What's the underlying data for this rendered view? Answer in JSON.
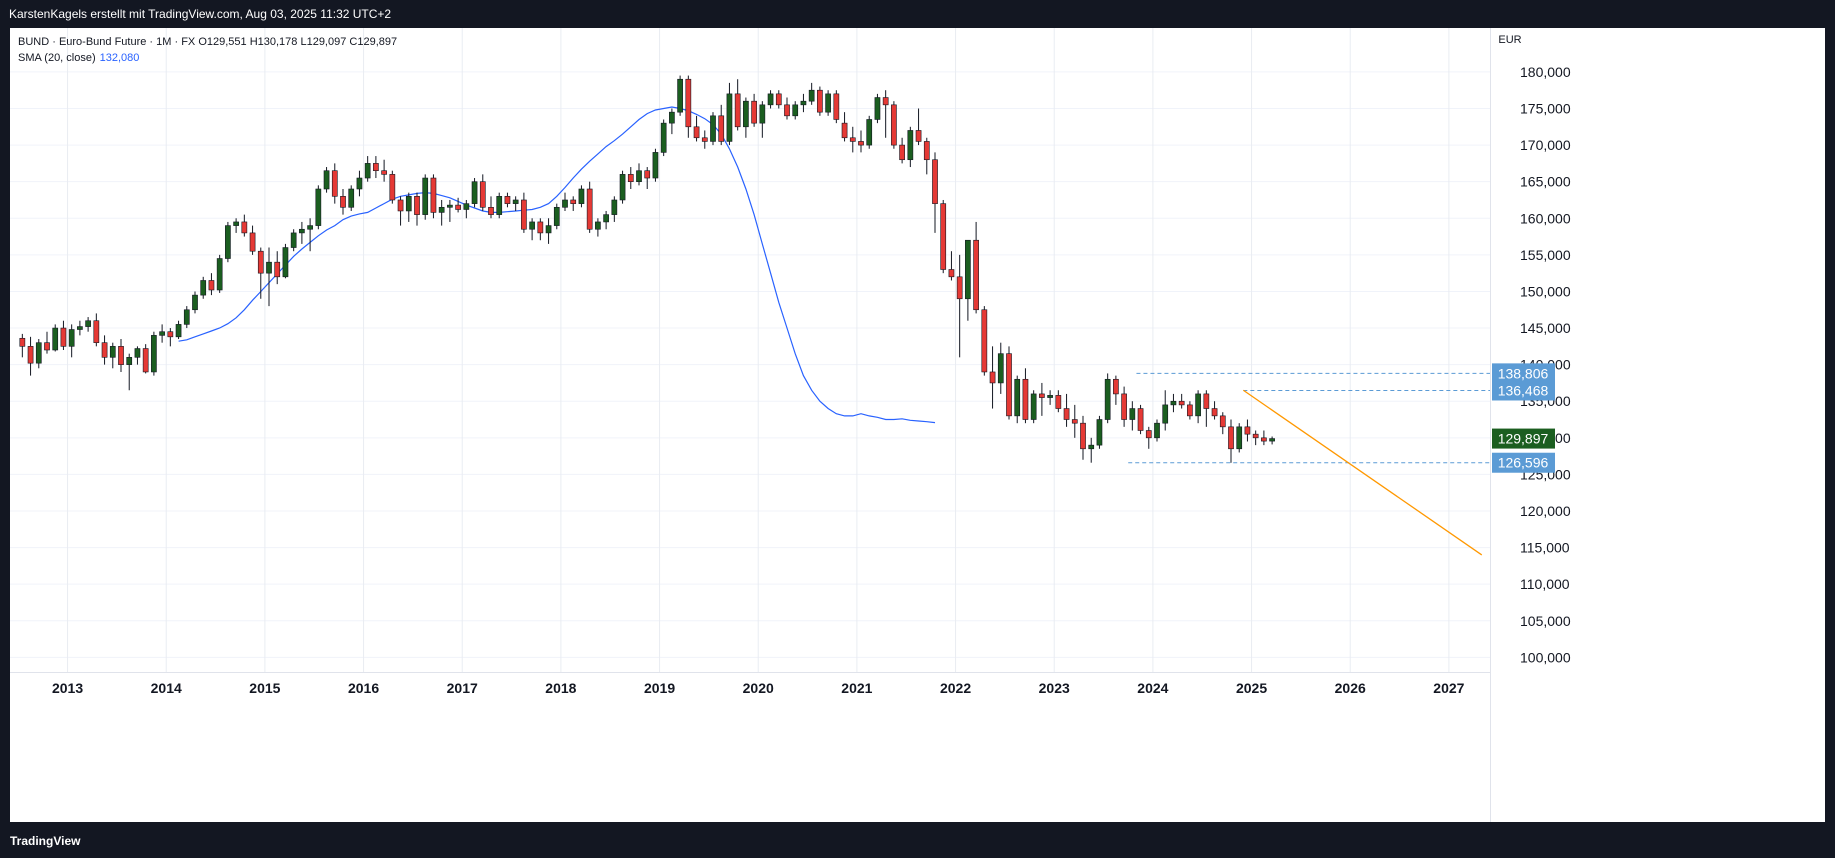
{
  "header": {
    "attribution": "KarstenKagels erstellt mit TradingView.com, Aug 03, 2025 11:32 UTC+2"
  },
  "footer": {
    "brand": "TradingView"
  },
  "legend": {
    "symbol_line": "BUND · Euro-Bund Future · 1M · FX  O129,551  H130,178  L129,097  C129,897",
    "sma_label": "SMA (20, close)",
    "sma_value": "132,080"
  },
  "colors": {
    "up": "#1b5e20",
    "down": "#e53935",
    "sma": "#2962ff",
    "trendline": "#ff9800",
    "level": "#5b9bd5",
    "price_label": "#1b5e20",
    "level_label": "#5b9bd5"
  },
  "chart_data": {
    "type": "candlestick",
    "currency": "EUR",
    "ylim": [
      98000,
      186000
    ],
    "y_ticks": [
      100000,
      105000,
      110000,
      115000,
      120000,
      125000,
      130000,
      135000,
      140000,
      145000,
      150000,
      155000,
      160000,
      165000,
      170000,
      175000,
      180000
    ],
    "y_tick_labels": [
      "100,000",
      "105,000",
      "110,000",
      "115,000",
      "120,000",
      "125,000",
      "130,000",
      "135,000",
      "140,000",
      "145,000",
      "150,000",
      "155,000",
      "160,000",
      "165,000",
      "170,000",
      "175,000",
      "180,000"
    ],
    "x_range": [
      "2012-06",
      "2027-06"
    ],
    "x_ticks": [
      "2013",
      "2014",
      "2015",
      "2016",
      "2017",
      "2018",
      "2019",
      "2020",
      "2021",
      "2022",
      "2023",
      "2024",
      "2025",
      "2026",
      "2027"
    ],
    "candles_start": "2012-07",
    "candles": [
      [
        143.6,
        144.2,
        141.0,
        142.5
      ],
      [
        142.5,
        143.8,
        138.5,
        140.2
      ],
      [
        140.2,
        143.5,
        139.5,
        143.0
      ],
      [
        143.0,
        144.5,
        141.5,
        142.0
      ],
      [
        142.0,
        145.5,
        141.8,
        145.0
      ],
      [
        145.0,
        146.0,
        142.0,
        142.5
      ],
      [
        142.5,
        145.5,
        141.0,
        144.8
      ],
      [
        144.8,
        146.0,
        144.0,
        145.2
      ],
      [
        145.2,
        146.5,
        144.5,
        146.0
      ],
      [
        146.0,
        147.0,
        142.5,
        143.0
      ],
      [
        143.0,
        144.0,
        140.0,
        141.0
      ],
      [
        141.0,
        143.0,
        139.5,
        142.5
      ],
      [
        142.5,
        143.5,
        139.0,
        140.0
      ],
      [
        140.0,
        141.5,
        136.5,
        141.0
      ],
      [
        141.0,
        142.5,
        140.0,
        142.2
      ],
      [
        142.2,
        142.8,
        138.8,
        139.0
      ],
      [
        139.0,
        144.5,
        138.5,
        144.0
      ],
      [
        144.0,
        145.5,
        143.0,
        144.5
      ],
      [
        144.5,
        145.0,
        142.5,
        143.8
      ],
      [
        143.8,
        146.0,
        143.5,
        145.5
      ],
      [
        145.5,
        148.0,
        145.0,
        147.5
      ],
      [
        147.5,
        150.0,
        147.0,
        149.5
      ],
      [
        149.5,
        152.0,
        149.0,
        151.5
      ],
      [
        151.5,
        152.5,
        149.5,
        150.2
      ],
      [
        150.2,
        155.0,
        149.8,
        154.5
      ],
      [
        154.5,
        159.5,
        154.0,
        159.0
      ],
      [
        159.0,
        160.0,
        158.0,
        159.5
      ],
      [
        159.5,
        160.5,
        157.5,
        158.0
      ],
      [
        158.0,
        159.0,
        155.0,
        155.5
      ],
      [
        155.5,
        156.0,
        149.0,
        152.5
      ],
      [
        152.5,
        156.0,
        148.0,
        154.0
      ],
      [
        154.0,
        155.5,
        151.0,
        152.0
      ],
      [
        152.0,
        156.5,
        151.8,
        156.0
      ],
      [
        156.0,
        158.5,
        155.5,
        158.0
      ],
      [
        158.0,
        159.5,
        156.5,
        158.5
      ],
      [
        158.5,
        160.0,
        155.5,
        159.0
      ],
      [
        159.0,
        164.5,
        158.5,
        164.0
      ],
      [
        164.0,
        167.0,
        163.5,
        166.5
      ],
      [
        166.5,
        167.5,
        162.0,
        163.0
      ],
      [
        163.0,
        164.0,
        160.5,
        161.5
      ],
      [
        161.5,
        164.5,
        161.0,
        164.0
      ],
      [
        164.0,
        166.5,
        163.0,
        165.5
      ],
      [
        165.5,
        168.5,
        165.0,
        167.5
      ],
      [
        167.5,
        168.5,
        165.5,
        166.5
      ],
      [
        166.5,
        168.0,
        165.0,
        166.0
      ],
      [
        166.0,
        166.5,
        162.0,
        162.5
      ],
      [
        162.5,
        163.0,
        159.0,
        161.0
      ],
      [
        161.0,
        163.5,
        159.5,
        163.0
      ],
      [
        163.0,
        163.5,
        159.0,
        160.5
      ],
      [
        160.5,
        166.0,
        159.8,
        165.5
      ],
      [
        165.5,
        166.0,
        160.0,
        160.8
      ],
      [
        160.8,
        162.5,
        159.0,
        161.5
      ],
      [
        161.5,
        162.5,
        159.5,
        161.8
      ],
      [
        161.8,
        162.8,
        160.8,
        161.2
      ],
      [
        161.2,
        162.5,
        160.0,
        162.0
      ],
      [
        162.0,
        165.5,
        161.5,
        165.0
      ],
      [
        165.0,
        166.0,
        161.0,
        161.5
      ],
      [
        161.5,
        163.0,
        160.0,
        160.5
      ],
      [
        160.5,
        163.5,
        160.0,
        163.0
      ],
      [
        163.0,
        163.5,
        161.5,
        162.0
      ],
      [
        162.0,
        163.0,
        161.0,
        162.5
      ],
      [
        162.5,
        163.5,
        158.0,
        158.5
      ],
      [
        158.5,
        160.0,
        157.0,
        159.5
      ],
      [
        159.5,
        160.0,
        157.0,
        158.0
      ],
      [
        158.0,
        160.0,
        156.5,
        159.0
      ],
      [
        159.0,
        162.0,
        158.5,
        161.5
      ],
      [
        161.5,
        163.5,
        161.0,
        162.5
      ],
      [
        162.5,
        163.0,
        161.0,
        162.0
      ],
      [
        162.0,
        164.5,
        161.5,
        164.0
      ],
      [
        164.0,
        165.0,
        158.0,
        158.5
      ],
      [
        158.5,
        160.0,
        157.5,
        159.5
      ],
      [
        159.5,
        161.0,
        158.5,
        160.5
      ],
      [
        160.5,
        163.0,
        159.5,
        162.5
      ],
      [
        162.5,
        166.5,
        162.0,
        166.0
      ],
      [
        166.0,
        167.0,
        164.0,
        165.0
      ],
      [
        165.0,
        167.5,
        164.5,
        166.5
      ],
      [
        166.5,
        167.0,
        164.0,
        165.5
      ],
      [
        165.5,
        169.5,
        165.0,
        169.0
      ],
      [
        169.0,
        173.5,
        168.5,
        173.0
      ],
      [
        173.0,
        175.0,
        171.5,
        174.5
      ],
      [
        174.5,
        179.5,
        174.0,
        179.0
      ],
      [
        179.0,
        179.5,
        171.0,
        172.5
      ],
      [
        172.5,
        174.0,
        170.5,
        171.0
      ],
      [
        171.0,
        172.0,
        169.5,
        170.5
      ],
      [
        170.5,
        174.5,
        170.0,
        174.0
      ],
      [
        174.0,
        175.5,
        170.0,
        170.5
      ],
      [
        170.5,
        178.5,
        170.0,
        177.0
      ],
      [
        177.0,
        179.0,
        172.0,
        172.5
      ],
      [
        172.5,
        176.5,
        171.0,
        176.0
      ],
      [
        176.0,
        177.0,
        172.5,
        173.0
      ],
      [
        173.0,
        176.0,
        171.0,
        175.5
      ],
      [
        175.5,
        177.5,
        175.0,
        177.0
      ],
      [
        177.0,
        177.5,
        175.0,
        175.5
      ],
      [
        175.5,
        176.5,
        173.5,
        174.0
      ],
      [
        174.0,
        176.0,
        173.5,
        175.5
      ],
      [
        175.5,
        177.0,
        174.5,
        176.0
      ],
      [
        176.0,
        178.5,
        175.5,
        177.5
      ],
      [
        177.5,
        178.0,
        174.0,
        174.5
      ],
      [
        174.5,
        177.5,
        174.0,
        177.0
      ],
      [
        177.0,
        177.5,
        173.0,
        173.5
      ],
      [
        173.0,
        174.5,
        170.5,
        171.0
      ],
      [
        171.0,
        172.5,
        169.0,
        170.5
      ],
      [
        170.5,
        172.0,
        169.0,
        170.0
      ],
      [
        170.0,
        174.0,
        169.5,
        173.5
      ],
      [
        173.5,
        177.0,
        173.0,
        176.5
      ],
      [
        176.5,
        177.5,
        171.0,
        175.5
      ],
      [
        175.5,
        176.0,
        169.5,
        170.0
      ],
      [
        170.0,
        171.0,
        167.5,
        168.0
      ],
      [
        168.0,
        172.5,
        167.0,
        172.0
      ],
      [
        172.0,
        175.0,
        170.0,
        170.5
      ],
      [
        170.5,
        171.0,
        166.0,
        168.0
      ],
      [
        168.0,
        169.0,
        158.0,
        162.0
      ],
      [
        162.0,
        162.5,
        152.5,
        153.0
      ],
      [
        153.0,
        155.5,
        151.5,
        152.0
      ],
      [
        152.0,
        155.0,
        141.0,
        149.0
      ],
      [
        149.0,
        157.0,
        146.0,
        157.0
      ],
      [
        157.0,
        159.5,
        147.0,
        147.5
      ],
      [
        147.5,
        148.0,
        138.5,
        139.0
      ],
      [
        139.0,
        142.5,
        134.0,
        137.5
      ],
      [
        137.5,
        143.0,
        136.0,
        141.5
      ],
      [
        141.5,
        142.5,
        132.5,
        133.0
      ],
      [
        133.0,
        138.5,
        132.0,
        138.0
      ],
      [
        138.0,
        139.5,
        132.0,
        132.5
      ],
      [
        132.5,
        136.5,
        132.0,
        136.0
      ],
      [
        136.0,
        137.5,
        133.0,
        135.5
      ],
      [
        135.5,
        136.5,
        134.5,
        135.8
      ],
      [
        135.8,
        136.5,
        133.5,
        134.0
      ],
      [
        134.0,
        136.0,
        131.5,
        132.5
      ],
      [
        132.5,
        134.5,
        130.0,
        132.0
      ],
      [
        132.0,
        133.0,
        127.0,
        128.5
      ],
      [
        128.5,
        130.0,
        126.6,
        129.0
      ],
      [
        129.0,
        133.0,
        128.5,
        132.5
      ],
      [
        132.5,
        138.8,
        132.0,
        138.0
      ],
      [
        138.0,
        138.5,
        134.5,
        136.0
      ],
      [
        136.0,
        137.0,
        131.5,
        132.5
      ],
      [
        132.5,
        135.0,
        131.0,
        134.0
      ],
      [
        134.0,
        134.5,
        130.5,
        131.0
      ],
      [
        131.0,
        131.5,
        128.5,
        130.0
      ],
      [
        130.0,
        132.5,
        129.5,
        132.0
      ],
      [
        132.0,
        136.5,
        131.0,
        134.5
      ],
      [
        134.5,
        136.0,
        133.5,
        135.0
      ],
      [
        135.0,
        136.0,
        134.0,
        134.5
      ],
      [
        134.5,
        135.0,
        132.5,
        133.0
      ],
      [
        133.0,
        136.5,
        132.0,
        136.0
      ],
      [
        136.0,
        136.5,
        131.5,
        134.0
      ],
      [
        134.0,
        135.0,
        132.5,
        133.0
      ],
      [
        133.0,
        133.5,
        130.5,
        131.5
      ],
      [
        131.5,
        132.5,
        126.6,
        128.5
      ],
      [
        128.5,
        132.0,
        128.0,
        131.5
      ],
      [
        131.5,
        132.5,
        129.5,
        130.5
      ],
      [
        130.5,
        131.0,
        129.0,
        130.0
      ],
      [
        130.0,
        131.0,
        129.0,
        129.551
      ],
      [
        129.551,
        130.178,
        129.097,
        129.897
      ]
    ],
    "sma": {
      "name": "SMA (20, close)",
      "start": "2014-02",
      "values": [
        143.2,
        143.4,
        143.8,
        144.2,
        144.6,
        145.0,
        145.6,
        146.4,
        147.5,
        148.8,
        150.0,
        151.2,
        152.4,
        153.6,
        154.8,
        155.8,
        156.7,
        157.6,
        158.4,
        159.0,
        159.8,
        160.3,
        160.6,
        160.8,
        161.4,
        162.0,
        162.6,
        163.0,
        163.2,
        163.4,
        163.5,
        163.4,
        163.1,
        162.8,
        162.3,
        161.8,
        161.4,
        161.0,
        160.8,
        160.8,
        160.9,
        161.0,
        161.1,
        161.2,
        161.5,
        162.0,
        163.0,
        164.2,
        165.5,
        166.7,
        167.8,
        168.8,
        169.8,
        170.6,
        171.5,
        172.5,
        173.5,
        174.3,
        174.8,
        175.0,
        175.2,
        175.0,
        174.7,
        174.2,
        173.6,
        172.8,
        171.5,
        169.5,
        167.0,
        164.0,
        160.5,
        156.5,
        152.5,
        148.5,
        145.0,
        141.5,
        138.5,
        136.5,
        135.0,
        134.0,
        133.3,
        133.0,
        133.0,
        133.3,
        133.0,
        132.8,
        132.5,
        132.5,
        132.6,
        132.4,
        132.3,
        132.2,
        132.08
      ]
    },
    "trendline": {
      "from": [
        "2024-12",
        136.5
      ],
      "to": [
        "2027-05",
        114.0
      ]
    },
    "levels": [
      {
        "value": 138806,
        "label": "138,806",
        "from": "2023-11"
      },
      {
        "value": 136468,
        "label": "136,468",
        "from": "2024-12"
      },
      {
        "value": 126596,
        "label": "126,596",
        "from": "2023-10"
      }
    ],
    "last_price": {
      "value": 129897,
      "label": "129,897"
    }
  }
}
